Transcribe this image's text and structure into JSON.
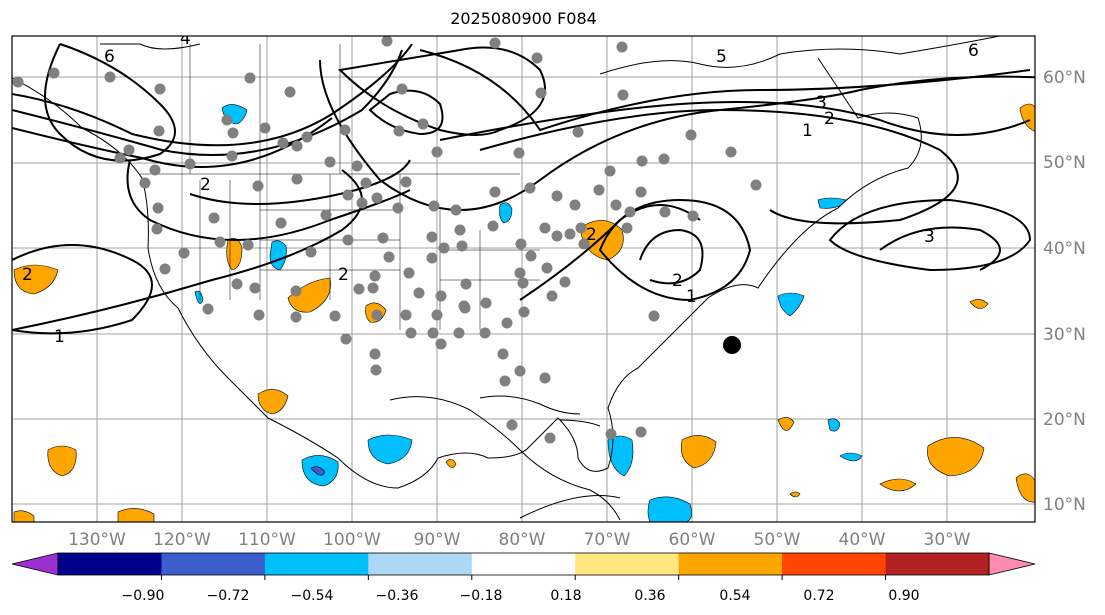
{
  "title": "2025080900 F084",
  "map": {
    "lon_range": [
      -140,
      -20
    ],
    "lat_range": [
      8,
      65
    ],
    "gridlines": true,
    "lat_labels": [
      "60°N",
      "50°N",
      "40°N",
      "30°N",
      "20°N",
      "10°N"
    ],
    "lon_labels": [
      "130°W",
      "120°W",
      "110°W",
      "100°W",
      "90°W",
      "80°W",
      "70°W",
      "60°W",
      "50°W",
      "40°W",
      "30°W"
    ],
    "contour_labels": [
      "6",
      "4",
      "5",
      "6",
      "3",
      "2",
      "1",
      "2",
      "2",
      "1",
      "3",
      "2",
      "1",
      "2",
      "2"
    ],
    "highlighted_point_color": "#000000",
    "station_marker_color": "#808080"
  },
  "colorbar": {
    "ticks": [
      "−0.90",
      "−0.72",
      "−0.54",
      "−0.36",
      "−0.18",
      "0.18",
      "0.36",
      "0.54",
      "0.72",
      "0.90"
    ],
    "colors": [
      "#9b30d0",
      "#00008b",
      "#3a5fcd",
      "#00bfff",
      "#add8f5",
      "#ffffff",
      "#ffe680",
      "#ffa500",
      "#ff4500",
      "#b22222",
      "#ff8bb0"
    ],
    "extend": "both"
  }
}
